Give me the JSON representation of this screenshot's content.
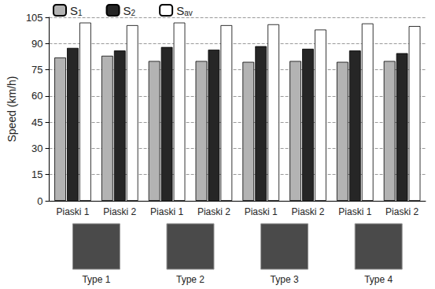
{
  "chart_data": {
    "type": "bar",
    "y_label": "Speed (km/h)",
    "categories": [
      "Piaski 1",
      "Piaski 2",
      "Piaski 1",
      "Piaski 2",
      "Piaski 1",
      "Piaski 2",
      "Piaski 1",
      "Piaski 2"
    ],
    "annotations": [
      "Type 1",
      "Type 2",
      "Type 3",
      "Type 4"
    ],
    "series": [
      {
        "name": "S1",
        "color": "#b3b3b3",
        "values": [
          82,
          83,
          80,
          80,
          79.5,
          80,
          79.5,
          80
        ]
      },
      {
        "name": "S2",
        "color": "#262626",
        "values": [
          87.5,
          86,
          88,
          86.5,
          88.5,
          87,
          86,
          84.5
        ]
      },
      {
        "name": "Sav",
        "color": "#ffffff",
        "values": [
          102,
          100.5,
          102,
          100.5,
          101,
          98,
          101.5,
          100
        ]
      }
    ],
    "ylim": [
      0,
      105
    ],
    "yticks": [
      0,
      15,
      30,
      45,
      60,
      75,
      90,
      105
    ],
    "grid": true,
    "legend": "top-left"
  }
}
